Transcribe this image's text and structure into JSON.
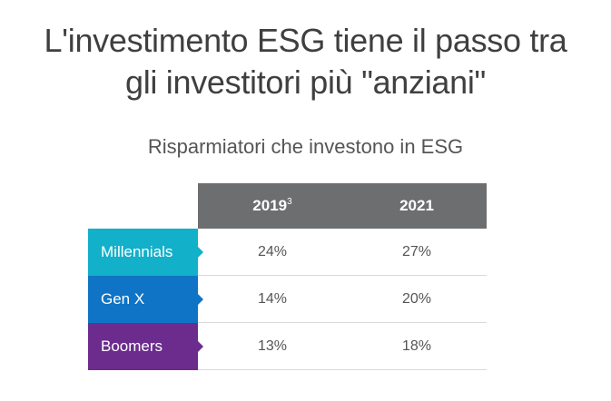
{
  "title": {
    "line1": "L'investimento ESG tiene il passo tra",
    "line2": "gli investitori più \"anziani\""
  },
  "subtitle": "Risparmiatori che investono in ESG",
  "table": {
    "columns": [
      {
        "label": "2019",
        "superscript": "3"
      },
      {
        "label": "2021",
        "superscript": ""
      }
    ],
    "rows": [
      {
        "label": "Millennials",
        "color": "#12b0c9",
        "values": [
          "24%",
          "27%"
        ]
      },
      {
        "label": "Gen X",
        "color": "#0f74c5",
        "values": [
          "14%",
          "20%"
        ]
      },
      {
        "label": "Boomers",
        "color": "#6b2c8e",
        "values": [
          "13%",
          "18%"
        ]
      }
    ],
    "header_color": "#6d6e70"
  }
}
